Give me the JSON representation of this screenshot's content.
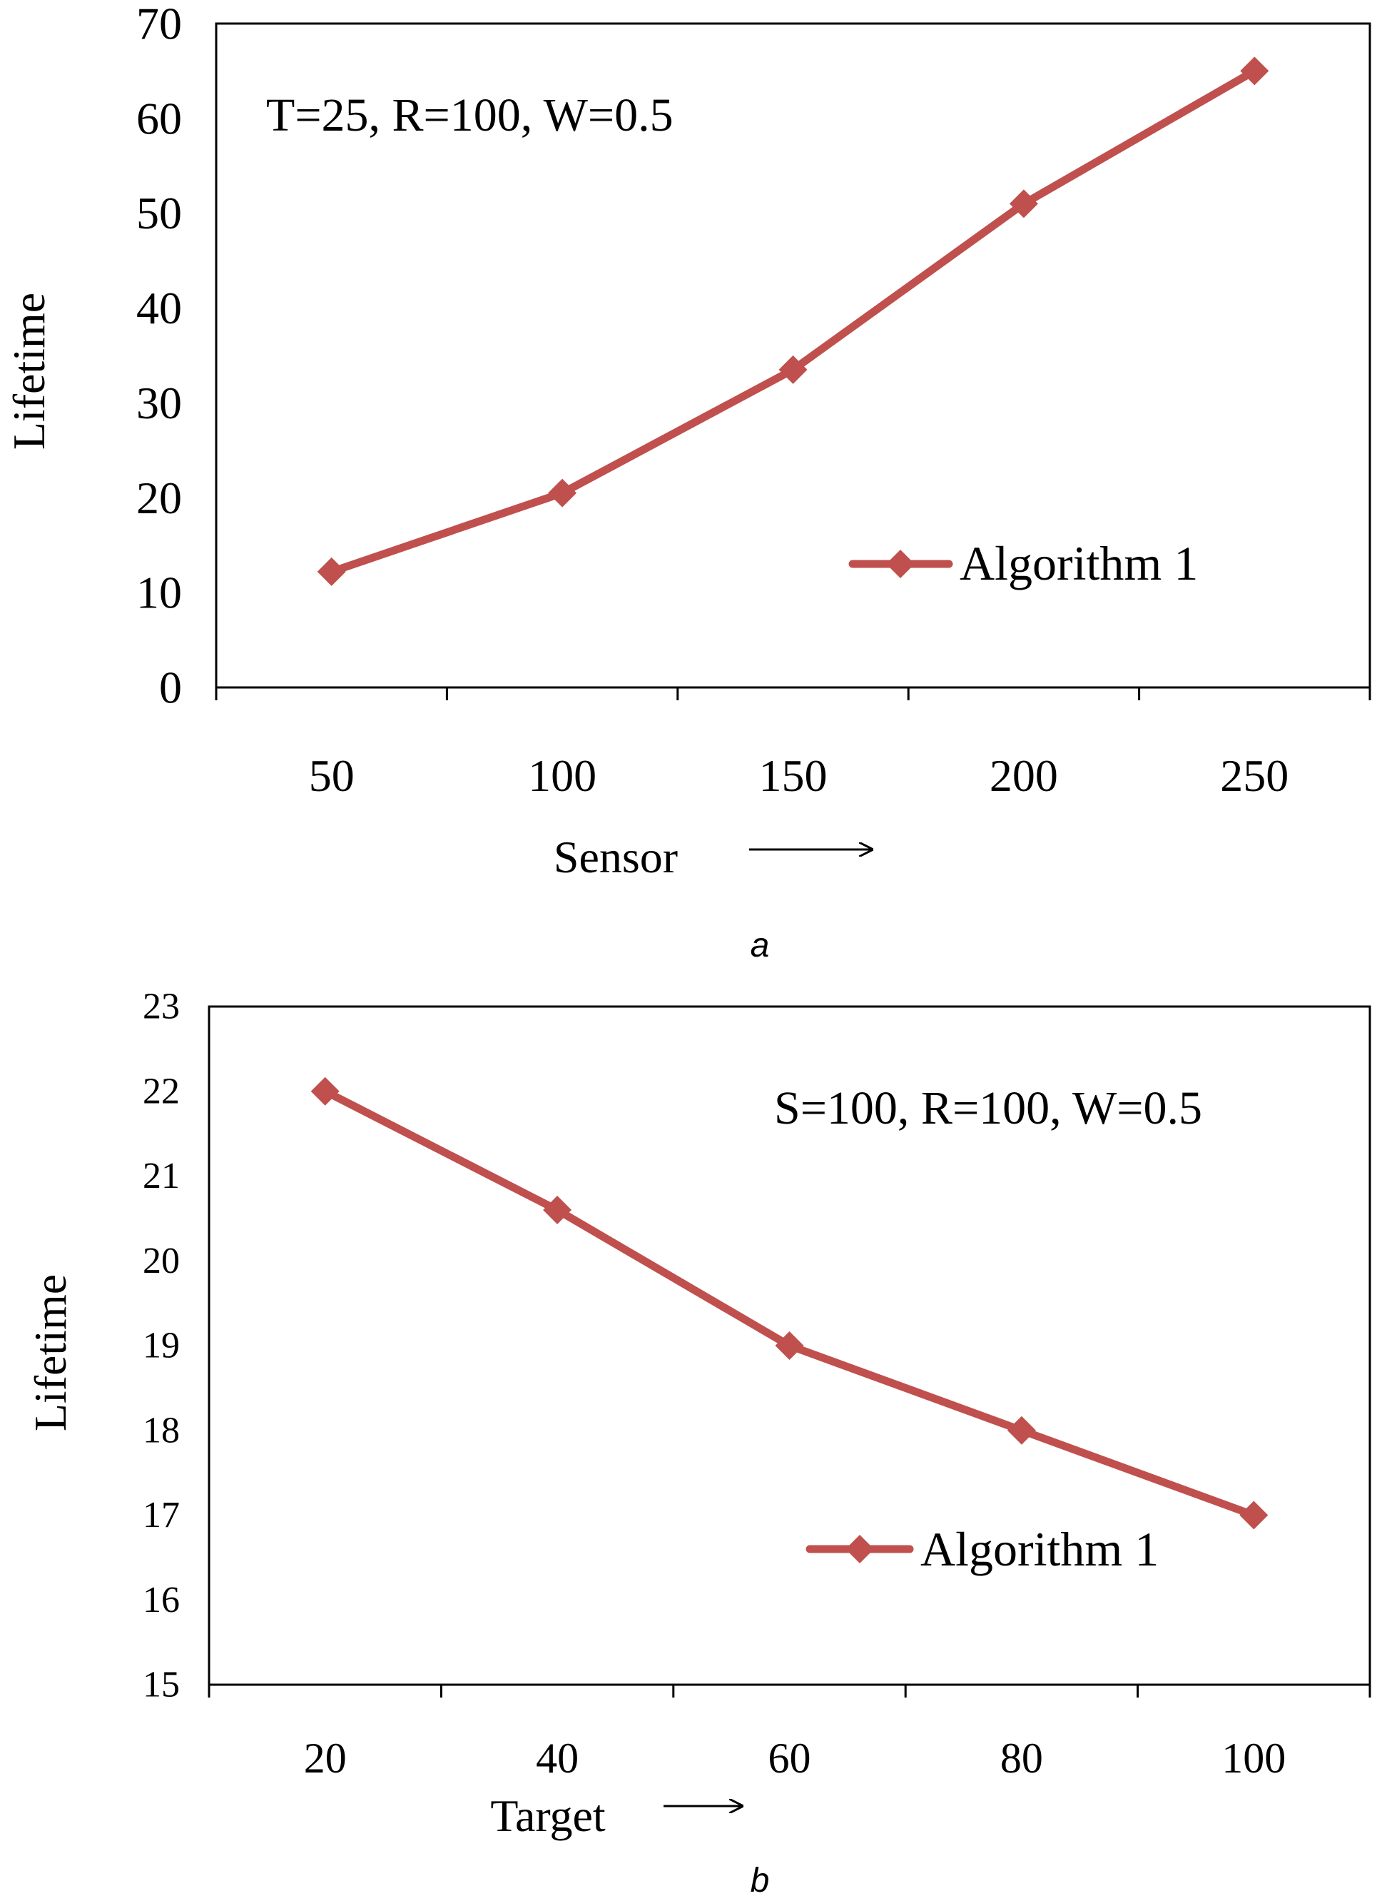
{
  "chart_data": [
    {
      "panel": "a",
      "type": "line",
      "categories": [
        "50",
        "100",
        "150",
        "200",
        "250"
      ],
      "xlabel": "Sensor",
      "ylabel": "Lifetime",
      "ylim": [
        0,
        70
      ],
      "yticks": [
        "0",
        "10",
        "20",
        "30",
        "40",
        "50",
        "60",
        "70"
      ],
      "annotation": "T=25, R=100, W=0.5",
      "legend_position": "right",
      "grid": false,
      "series": [
        {
          "name": "Algorithm 1",
          "color": "#C0504D",
          "marker": "diamond",
          "values": [
            12.2,
            20.5,
            33.5,
            51,
            65
          ]
        }
      ]
    },
    {
      "panel": "b",
      "type": "line",
      "categories": [
        "20",
        "40",
        "60",
        "80",
        "100"
      ],
      "xlabel": "Target",
      "ylabel": "Lifetime",
      "ylim": [
        15,
        23
      ],
      "yticks": [
        "15",
        "16",
        "17",
        "18",
        "19",
        "20",
        "21",
        "22",
        "23"
      ],
      "annotation": "S=100, R=100, W=0.5",
      "legend_position": "lower-right",
      "grid": false,
      "series": [
        {
          "name": "Algorithm 1",
          "color": "#C0504D",
          "marker": "diamond",
          "values": [
            22,
            20.6,
            19,
            18,
            17
          ]
        }
      ]
    }
  ]
}
